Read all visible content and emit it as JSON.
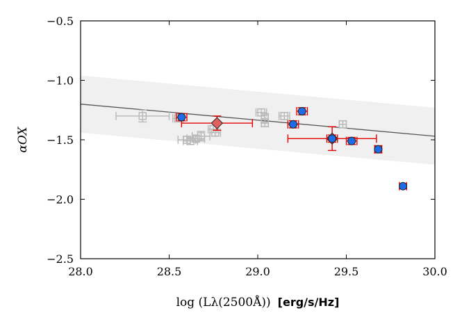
{
  "chart_data": {
    "type": "scatter",
    "title": "",
    "xlabel": {
      "math": "log (Lλ(2500Å))",
      "units": "[erg/s/Hz]"
    },
    "ylabel": "αOX",
    "xlim": [
      28.0,
      30.0
    ],
    "ylim": [
      -2.5,
      -0.5
    ],
    "x_ticks": [
      28.0,
      28.5,
      29.0,
      29.5,
      30.0
    ],
    "y_ticks": [
      -2.5,
      -2.0,
      -1.5,
      -1.0,
      -0.5
    ],
    "x_tick_labels": [
      "28.0",
      "28.5",
      "29.0",
      "29.5",
      "30.0"
    ],
    "y_tick_labels": [
      "−2.5",
      "−2.0",
      "−1.5",
      "−1.0",
      "−0.5"
    ],
    "grid": false,
    "relation": {
      "name": "best-fit relation",
      "color": "#555555",
      "x": [
        28.0,
        30.0
      ],
      "y": [
        -1.2,
        -1.47
      ],
      "band_halfwidth": 0.24,
      "band_color": "#f0f0f0"
    },
    "series": [
      {
        "name": "grey open squares",
        "marker": "square-open",
        "color": "#b8b8b8",
        "points": [
          {
            "x": 28.35,
            "y": -1.3,
            "xerr": 0.15,
            "yerr": 0.05
          },
          {
            "x": 28.55,
            "y": -1.32,
            "xerr": 0.03,
            "yerr": 0.03
          },
          {
            "x": 28.6,
            "y": -1.5,
            "xerr": 0.05,
            "yerr": 0.03
          },
          {
            "x": 28.62,
            "y": -1.51,
            "xerr": 0.04,
            "yerr": 0.03
          },
          {
            "x": 28.65,
            "y": -1.49,
            "xerr": 0.05,
            "yerr": 0.03
          },
          {
            "x": 28.68,
            "y": -1.47,
            "xerr": 0.05,
            "yerr": 0.04
          },
          {
            "x": 28.75,
            "y": -1.41,
            "xerr": 0.03,
            "yerr": 0.03
          },
          {
            "x": 28.76,
            "y": -1.44,
            "xerr": 0.03,
            "yerr": 0.03
          },
          {
            "x": 29.02,
            "y": -1.27,
            "xerr": 0.03,
            "yerr": 0.03
          },
          {
            "x": 29.04,
            "y": -1.32,
            "xerr": 0.02,
            "yerr": 0.04
          },
          {
            "x": 29.04,
            "y": -1.36,
            "xerr": 0.02,
            "yerr": 0.03
          },
          {
            "x": 29.15,
            "y": -1.3,
            "xerr": 0.03,
            "yerr": 0.03
          },
          {
            "x": 29.48,
            "y": -1.37,
            "xerr": 0.02,
            "yerr": 0.03
          }
        ]
      },
      {
        "name": "red diamonds",
        "marker": "diamond",
        "color": "#e06060",
        "edge": "#222222",
        "errcolor": "#e60000",
        "points": [
          {
            "x": 28.77,
            "y": -1.36,
            "xerr": 0.2,
            "yerr": 0.06
          },
          {
            "x": 29.42,
            "y": -1.49,
            "xerr": 0.25,
            "yerr": 0.1
          }
        ]
      },
      {
        "name": "blue circles",
        "marker": "circle",
        "color": "#1e6ce8",
        "edge": "#222222",
        "errcolor": "#e60000",
        "points": [
          {
            "x": 28.57,
            "y": -1.31,
            "xerr": 0.03,
            "yerr": 0.03
          },
          {
            "x": 29.2,
            "y": -1.37,
            "xerr": 0.03,
            "yerr": 0.03
          },
          {
            "x": 29.25,
            "y": -1.26,
            "xerr": 0.03,
            "yerr": 0.03
          },
          {
            "x": 29.42,
            "y": -1.49,
            "xerr": 0.03,
            "yerr": 0.03
          },
          {
            "x": 29.53,
            "y": -1.51,
            "xerr": 0.03,
            "yerr": 0.03
          },
          {
            "x": 29.68,
            "y": -1.58,
            "xerr": 0.02,
            "yerr": 0.03
          },
          {
            "x": 29.82,
            "y": -1.89,
            "xerr": 0.02,
            "yerr": 0.02
          }
        ]
      }
    ]
  }
}
